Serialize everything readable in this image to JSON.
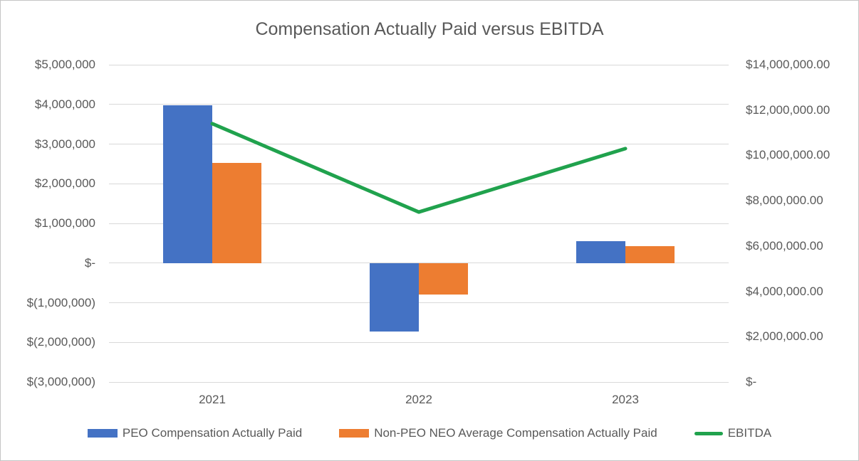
{
  "title": "Compensation Actually Paid versus EBITDA",
  "colors": {
    "peo_bar": "#4472C4",
    "neo_bar": "#ED7D31",
    "ebitda_line": "#20A24D",
    "text": "#595959",
    "gridline": "#d9d9d9"
  },
  "chart_data": {
    "type": "bar",
    "subtype": "combo-bar-line-dual-axis",
    "title": "Compensation Actually Paid versus EBITDA",
    "categories": [
      "2021",
      "2022",
      "2023"
    ],
    "series": [
      {
        "name": "PEO Compensation Actually Paid",
        "type": "bar",
        "axis": "left",
        "color": "#4472C4",
        "values": [
          3980000,
          -1720000,
          550000
        ]
      },
      {
        "name": "Non-PEO NEO Average Compensation Actually Paid",
        "type": "bar",
        "axis": "left",
        "color": "#ED7D31",
        "values": [
          2530000,
          -800000,
          430000
        ]
      },
      {
        "name": "EBITDA",
        "type": "line",
        "axis": "right",
        "color": "#20A24D",
        "values": [
          11400000,
          7500000,
          10300000
        ]
      }
    ],
    "left_axis": {
      "min": -3000000,
      "max": 5000000,
      "step": 1000000,
      "ticks": [
        {
          "value": 5000000,
          "label": "$5,000,000"
        },
        {
          "value": 4000000,
          "label": "$4,000,000"
        },
        {
          "value": 3000000,
          "label": "$3,000,000"
        },
        {
          "value": 2000000,
          "label": "$2,000,000"
        },
        {
          "value": 1000000,
          "label": "$1,000,000"
        },
        {
          "value": 0,
          "label": "$-"
        },
        {
          "value": -1000000,
          "label": "$(1,000,000)"
        },
        {
          "value": -2000000,
          "label": "$(2,000,000)"
        },
        {
          "value": -3000000,
          "label": "$(3,000,000)"
        }
      ]
    },
    "right_axis": {
      "min": 0,
      "max": 14000000,
      "step": 2000000,
      "ticks": [
        {
          "value": 14000000,
          "label": "$14,000,000.00"
        },
        {
          "value": 12000000,
          "label": "$12,000,000.00"
        },
        {
          "value": 10000000,
          "label": "$10,000,000.00"
        },
        {
          "value": 8000000,
          "label": "$8,000,000.00"
        },
        {
          "value": 6000000,
          "label": "$6,000,000.00"
        },
        {
          "value": 4000000,
          "label": "$4,000,000.00"
        },
        {
          "value": 2000000,
          "label": "$2,000,000.00"
        },
        {
          "value": 0,
          "label": "$-"
        }
      ]
    },
    "grid": true,
    "legend_position": "bottom",
    "legend": [
      {
        "label": "PEO Compensation Actually Paid",
        "swatch": "bar",
        "color": "#4472C4"
      },
      {
        "label": "Non-PEO NEO Average Compensation Actually Paid",
        "swatch": "bar",
        "color": "#ED7D31"
      },
      {
        "label": "EBITDA",
        "swatch": "line",
        "color": "#20A24D"
      }
    ]
  }
}
